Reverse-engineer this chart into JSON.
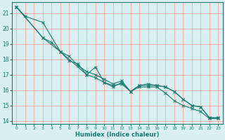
{
  "xlabel": "Humidex (Indice chaleur)",
  "bg_color": "#d9f0f0",
  "grid_color": "#ff9999",
  "line_color": "#1a7a6e",
  "xlim": [
    -0.5,
    23.5
  ],
  "ylim": [
    13.8,
    21.7
  ],
  "xticks": [
    0,
    1,
    2,
    3,
    4,
    5,
    6,
    7,
    8,
    9,
    10,
    11,
    12,
    13,
    14,
    15,
    16,
    17,
    18,
    19,
    20,
    21,
    22,
    23
  ],
  "yticks": [
    14,
    15,
    16,
    17,
    18,
    19,
    20,
    21
  ],
  "line1_x": [
    0,
    1,
    3,
    5,
    6,
    7,
    8,
    9,
    10,
    11,
    12,
    13,
    14,
    15,
    16,
    17,
    18,
    19,
    20,
    21,
    22,
    23
  ],
  "line1_y": [
    21.4,
    20.8,
    20.4,
    18.5,
    17.9,
    17.7,
    17.0,
    16.8,
    16.5,
    16.3,
    16.4,
    15.9,
    16.3,
    16.3,
    16.3,
    16.2,
    15.9,
    15.4,
    15.0,
    14.9,
    14.2,
    14.2
  ],
  "line2_x": [
    0,
    3,
    4,
    5,
    6,
    7,
    8,
    9,
    10,
    11,
    12,
    13,
    14,
    15,
    16,
    17,
    18,
    19,
    20,
    21,
    22,
    23
  ],
  "line2_y": [
    21.4,
    19.4,
    19.1,
    18.5,
    18.2,
    17.6,
    17.2,
    17.0,
    16.7,
    16.4,
    16.6,
    15.9,
    16.2,
    16.2,
    16.2,
    15.8,
    15.3,
    15.0,
    14.8,
    14.6,
    14.15,
    14.15
  ],
  "line3_x": [
    0,
    3,
    5,
    8,
    9,
    10,
    11,
    12,
    13,
    14,
    15,
    16,
    17,
    18,
    19,
    20,
    21,
    22,
    23
  ],
  "line3_y": [
    21.4,
    19.4,
    18.5,
    17.0,
    17.5,
    16.5,
    16.2,
    16.5,
    15.9,
    16.3,
    16.4,
    16.3,
    16.2,
    15.9,
    15.4,
    15.0,
    14.9,
    14.2,
    14.2
  ]
}
